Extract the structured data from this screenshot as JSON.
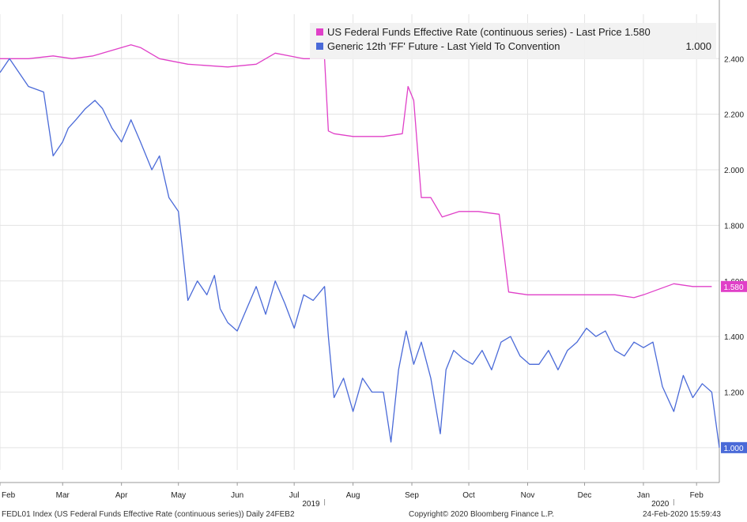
{
  "chart_data": {
    "type": "line",
    "title": "",
    "xlabel": "",
    "ylabel": "",
    "ylim": [
      0.92,
      2.56
    ],
    "yticks": [
      1.0,
      1.2,
      1.4,
      1.6,
      1.8,
      2.0,
      2.2,
      2.4
    ],
    "ytick_labels": [
      "1.000",
      "1.200",
      "1.400",
      "1.600",
      "1.800",
      "2.000",
      "2.200",
      "2.400"
    ],
    "xlim": [
      "2019-02-10",
      "2020-02-24"
    ],
    "month_ticks": [
      {
        "date": "2019-02-10",
        "label": "Feb"
      },
      {
        "date": "2019-03-15",
        "label": "Mar"
      },
      {
        "date": "2019-04-15",
        "label": "Apr"
      },
      {
        "date": "2019-05-15",
        "label": "May"
      },
      {
        "date": "2019-06-15",
        "label": "Jun"
      },
      {
        "date": "2019-07-15",
        "label": "Jul"
      },
      {
        "date": "2019-08-15",
        "label": "Aug"
      },
      {
        "date": "2019-09-15",
        "label": "Sep"
      },
      {
        "date": "2019-10-15",
        "label": "Oct"
      },
      {
        "date": "2019-11-15",
        "label": "Nov"
      },
      {
        "date": "2019-12-15",
        "label": "Dec"
      },
      {
        "date": "2020-01-15",
        "label": "Jan"
      },
      {
        "date": "2020-02-12",
        "label": "Feb"
      }
    ],
    "year_labels": [
      {
        "date": "2019-07-31",
        "label": "2019"
      },
      {
        "date": "2020-01-31",
        "label": "2020"
      }
    ],
    "grid": true,
    "legend_position": "top-right",
    "series": [
      {
        "name": "US Federal Funds Effective Rate (continuous series) - Last Price 1.580",
        "color": "#e040c8",
        "last_value_label": "1.580",
        "x": [
          "2019-02-10",
          "2019-02-25",
          "2019-03-10",
          "2019-03-20",
          "2019-03-31",
          "2019-04-20",
          "2019-04-25",
          "2019-05-05",
          "2019-05-20",
          "2019-06-10",
          "2019-06-25",
          "2019-07-05",
          "2019-07-20",
          "2019-07-31",
          "2019-08-02",
          "2019-08-05",
          "2019-08-15",
          "2019-08-31",
          "2019-09-10",
          "2019-09-13",
          "2019-09-16",
          "2019-09-20",
          "2019-09-25",
          "2019-10-01",
          "2019-10-10",
          "2019-10-20",
          "2019-10-31",
          "2019-11-05",
          "2019-11-15",
          "2019-11-30",
          "2019-12-15",
          "2019-12-31",
          "2020-01-10",
          "2020-01-15",
          "2020-01-31",
          "2020-02-10",
          "2020-02-20"
        ],
        "y": [
          2.4,
          2.4,
          2.41,
          2.4,
          2.41,
          2.45,
          2.44,
          2.4,
          2.38,
          2.37,
          2.38,
          2.42,
          2.4,
          2.4,
          2.14,
          2.13,
          2.12,
          2.12,
          2.13,
          2.3,
          2.25,
          1.9,
          1.9,
          1.83,
          1.85,
          1.85,
          1.84,
          1.56,
          1.55,
          1.55,
          1.55,
          1.55,
          1.54,
          1.55,
          1.59,
          1.58,
          1.58
        ]
      },
      {
        "name": "Generic 12th 'FF' Future - Last Yield To Convention",
        "color": "#4a6ad8",
        "last_value_label": "1.000",
        "x": [
          "2019-02-10",
          "2019-02-15",
          "2019-02-20",
          "2019-02-25",
          "2019-03-05",
          "2019-03-10",
          "2019-03-15",
          "2019-03-18",
          "2019-03-22",
          "2019-03-27",
          "2019-04-01",
          "2019-04-05",
          "2019-04-10",
          "2019-04-15",
          "2019-04-20",
          "2019-04-25",
          "2019-05-01",
          "2019-05-05",
          "2019-05-10",
          "2019-05-15",
          "2019-05-20",
          "2019-05-25",
          "2019-05-30",
          "2019-06-03",
          "2019-06-06",
          "2019-06-10",
          "2019-06-15",
          "2019-06-20",
          "2019-06-25",
          "2019-06-30",
          "2019-07-05",
          "2019-07-10",
          "2019-07-15",
          "2019-07-20",
          "2019-07-25",
          "2019-07-31",
          "2019-08-02",
          "2019-08-05",
          "2019-08-10",
          "2019-08-15",
          "2019-08-20",
          "2019-08-25",
          "2019-08-31",
          "2019-09-04",
          "2019-09-08",
          "2019-09-12",
          "2019-09-16",
          "2019-09-20",
          "2019-09-25",
          "2019-09-30",
          "2019-10-03",
          "2019-10-07",
          "2019-10-12",
          "2019-10-17",
          "2019-10-22",
          "2019-10-27",
          "2019-11-01",
          "2019-11-06",
          "2019-11-11",
          "2019-11-16",
          "2019-11-21",
          "2019-11-26",
          "2019-12-01",
          "2019-12-06",
          "2019-12-11",
          "2019-12-16",
          "2019-12-21",
          "2019-12-26",
          "2019-12-31",
          "2020-01-05",
          "2020-01-10",
          "2020-01-15",
          "2020-01-20",
          "2020-01-25",
          "2020-01-31",
          "2020-02-05",
          "2020-02-10",
          "2020-02-15",
          "2020-02-20",
          "2020-02-24"
        ],
        "y": [
          2.35,
          2.4,
          2.35,
          2.3,
          2.28,
          2.05,
          2.1,
          2.15,
          2.18,
          2.22,
          2.25,
          2.22,
          2.15,
          2.1,
          2.18,
          2.1,
          2.0,
          2.05,
          1.9,
          1.85,
          1.53,
          1.6,
          1.55,
          1.62,
          1.5,
          1.45,
          1.42,
          1.5,
          1.58,
          1.48,
          1.6,
          1.52,
          1.43,
          1.55,
          1.53,
          1.58,
          1.4,
          1.18,
          1.25,
          1.13,
          1.25,
          1.2,
          1.2,
          1.02,
          1.28,
          1.42,
          1.3,
          1.38,
          1.25,
          1.05,
          1.28,
          1.35,
          1.32,
          1.3,
          1.35,
          1.28,
          1.38,
          1.4,
          1.33,
          1.3,
          1.3,
          1.35,
          1.28,
          1.35,
          1.38,
          1.43,
          1.4,
          1.42,
          1.35,
          1.33,
          1.38,
          1.36,
          1.38,
          1.22,
          1.13,
          1.26,
          1.18,
          1.23,
          1.2,
          1.0
        ]
      }
    ]
  },
  "footer": {
    "left": "FEDL01 Index (US Federal Funds Effective Rate (continuous series))  Daily 24FEB2",
    "center": "Copyright© 2020 Bloomberg Finance L.P.",
    "right": "24-Feb-2020 15:59:43"
  }
}
